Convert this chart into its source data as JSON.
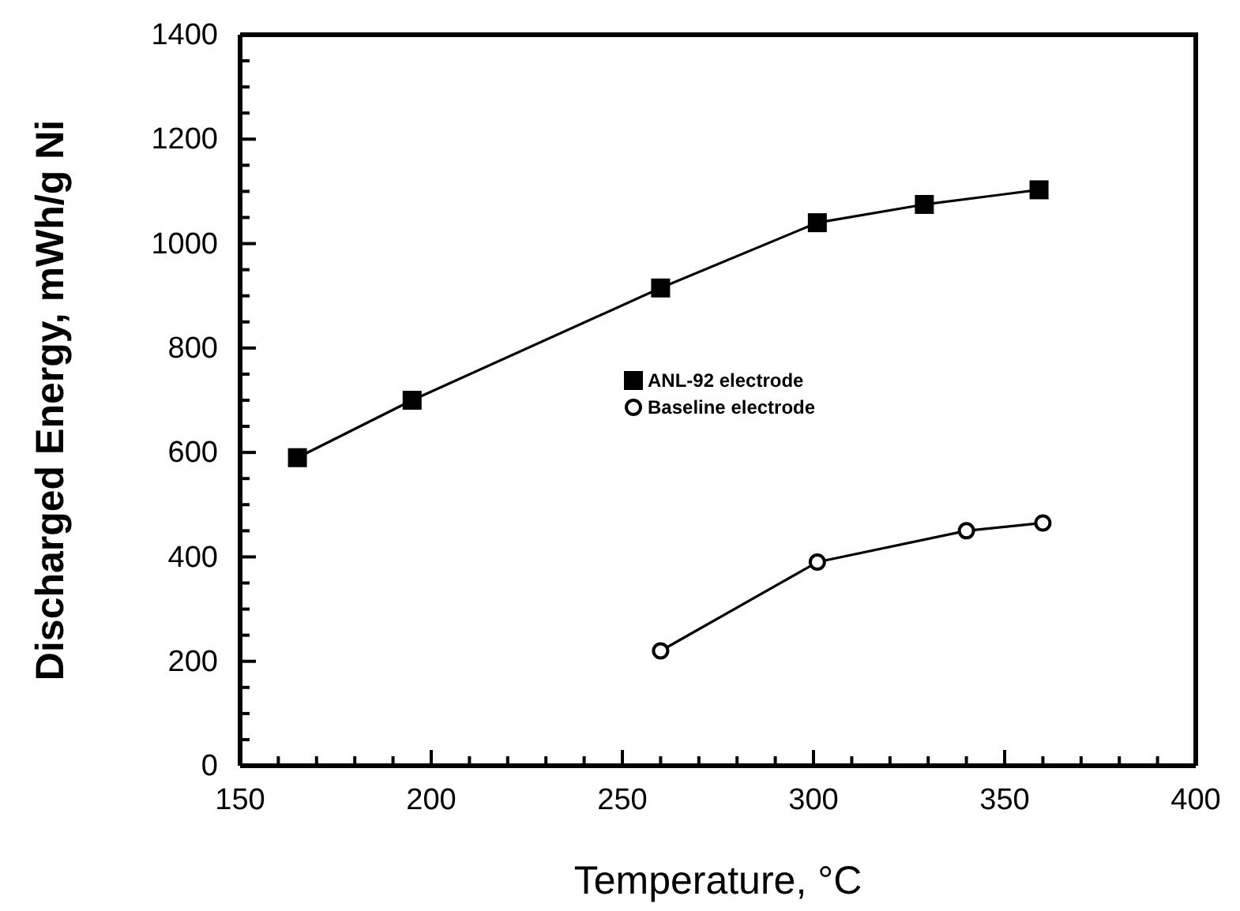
{
  "chart_data": {
    "type": "line",
    "xlabel": "Temperature, °C",
    "ylabel": "Discharged Energy, mWh/g Ni",
    "xlim": [
      150,
      400
    ],
    "ylim": [
      0,
      1400
    ],
    "xticks": [
      150,
      {
        "value": 160,
        "label": null
      },
      {
        "value": 170,
        "label": null
      },
      {
        "value": 180,
        "label": null
      },
      {
        "value": 190,
        "label": null
      },
      200,
      {
        "value": 210,
        "label": null
      },
      {
        "value": 220,
        "label": null
      },
      {
        "value": 230,
        "label": null
      },
      {
        "value": 240,
        "label": null
      },
      250,
      {
        "value": 260,
        "label": null
      },
      {
        "value": 270,
        "label": null
      },
      {
        "value": 280,
        "label": null
      },
      {
        "value": 290,
        "label": null
      },
      300,
      {
        "value": 310,
        "label": null
      },
      {
        "value": 320,
        "label": null
      },
      {
        "value": 330,
        "label": null
      },
      {
        "value": 340,
        "label": null
      },
      350,
      {
        "value": 360,
        "label": null
      },
      {
        "value": 370,
        "label": null
      },
      {
        "value": 380,
        "label": null
      },
      {
        "value": 390,
        "label": null
      },
      400
    ],
    "yticks": [
      0,
      {
        "value": 50,
        "label": null
      },
      {
        "value": 100,
        "label": null
      },
      {
        "value": 150,
        "label": null
      },
      200,
      {
        "value": 250,
        "label": null
      },
      {
        "value": 300,
        "label": null
      },
      {
        "value": 350,
        "label": null
      },
      400,
      {
        "value": 450,
        "label": null
      },
      {
        "value": 500,
        "label": null
      },
      {
        "value": 550,
        "label": null
      },
      600,
      {
        "value": 650,
        "label": null
      },
      {
        "value": 700,
        "label": null
      },
      {
        "value": 750,
        "label": null
      },
      800,
      {
        "value": 850,
        "label": null
      },
      {
        "value": 900,
        "label": null
      },
      {
        "value": 950,
        "label": null
      },
      1000,
      {
        "value": 1050,
        "label": null
      },
      {
        "value": 1100,
        "label": null
      },
      {
        "value": 1150,
        "label": null
      },
      1200,
      {
        "value": 1250,
        "label": null
      },
      {
        "value": 1300,
        "label": null
      },
      {
        "value": 1350,
        "label": null
      },
      1400
    ],
    "legend": "center",
    "grid": false,
    "series": [
      {
        "name": "ANL-92 electrode",
        "color": "#000000",
        "marker": "square",
        "x": [
          165,
          195,
          260,
          301,
          329,
          359
        ],
        "values": [
          590,
          700,
          915,
          1040,
          1075,
          1103
        ]
      },
      {
        "name": "Baseline electrode",
        "color": "#000000",
        "marker": "circle",
        "x": [
          260,
          301,
          340,
          360
        ],
        "values": [
          220,
          390,
          450,
          465
        ]
      }
    ]
  }
}
